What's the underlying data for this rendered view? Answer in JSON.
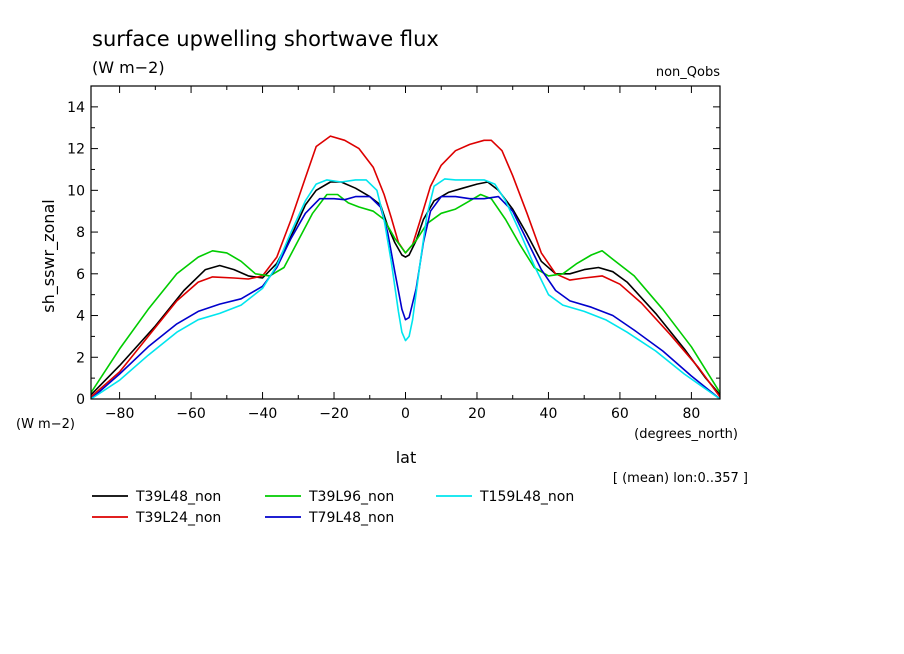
{
  "chart_data": {
    "type": "line",
    "title": "surface upwelling shortwave flux",
    "units": "(W m−2)",
    "experiment": "non_Qobs",
    "ylabel": "sh_sswr_zonal",
    "yunits": "(W m−2)",
    "xlabel": "lat",
    "xunits": "(degrees_north)",
    "note": "[ (mean) lon:0..357 ]",
    "xlim": [
      -88,
      88
    ],
    "ylim": [
      0,
      15
    ],
    "xticks": [
      -80,
      -60,
      -40,
      -20,
      0,
      20,
      40,
      60,
      80
    ],
    "yticks": [
      0,
      2,
      4,
      6,
      8,
      10,
      12,
      14
    ],
    "xtick_labels": [
      "−80",
      "−60",
      "−40",
      "−20",
      "0",
      "20",
      "40",
      "60",
      "80"
    ],
    "ytick_labels": [
      "0",
      "2",
      "4",
      "6",
      "8",
      "10",
      "12",
      "14"
    ],
    "legend_position": "below",
    "series": [
      {
        "name": "T39L48_non",
        "color": "#000000",
        "points": [
          [
            -88,
            0.2
          ],
          [
            -80,
            1.6
          ],
          [
            -70,
            3.5
          ],
          [
            -62,
            5.2
          ],
          [
            -56,
            6.2
          ],
          [
            -52,
            6.4
          ],
          [
            -48,
            6.2
          ],
          [
            -44,
            5.9
          ],
          [
            -40,
            5.8
          ],
          [
            -36,
            6.5
          ],
          [
            -32,
            7.8
          ],
          [
            -28,
            9.3
          ],
          [
            -25,
            10.0
          ],
          [
            -21,
            10.4
          ],
          [
            -18,
            10.4
          ],
          [
            -14,
            10.1
          ],
          [
            -10,
            9.7
          ],
          [
            -7,
            9.3
          ],
          [
            -5,
            8.3
          ],
          [
            -3,
            7.5
          ],
          [
            -1,
            6.9
          ],
          [
            0,
            6.8
          ],
          [
            1,
            6.9
          ],
          [
            3,
            7.6
          ],
          [
            5,
            8.6
          ],
          [
            8,
            9.5
          ],
          [
            12,
            9.9
          ],
          [
            16,
            10.1
          ],
          [
            20,
            10.3
          ],
          [
            23,
            10.4
          ],
          [
            26,
            10.0
          ],
          [
            30,
            9.1
          ],
          [
            34,
            7.9
          ],
          [
            38,
            6.6
          ],
          [
            42,
            6.0
          ],
          [
            46,
            6.0
          ],
          [
            50,
            6.2
          ],
          [
            54,
            6.3
          ],
          [
            58,
            6.1
          ],
          [
            62,
            5.6
          ],
          [
            70,
            4.1
          ],
          [
            78,
            2.4
          ],
          [
            84,
            1.0
          ],
          [
            88,
            0.2
          ]
        ]
      },
      {
        "name": "T39L24_non",
        "color": "#dd0000",
        "points": [
          [
            -88,
            0.1
          ],
          [
            -80,
            1.3
          ],
          [
            -72,
            3.0
          ],
          [
            -64,
            4.7
          ],
          [
            -58,
            5.6
          ],
          [
            -54,
            5.85
          ],
          [
            -48,
            5.8
          ],
          [
            -44,
            5.75
          ],
          [
            -40,
            5.9
          ],
          [
            -36,
            6.8
          ],
          [
            -32,
            8.6
          ],
          [
            -28,
            10.6
          ],
          [
            -25,
            12.1
          ],
          [
            -21,
            12.6
          ],
          [
            -17,
            12.4
          ],
          [
            -13,
            12.0
          ],
          [
            -9,
            11.1
          ],
          [
            -6,
            9.8
          ],
          [
            -4,
            8.7
          ],
          [
            -2,
            7.5
          ],
          [
            0,
            7.0
          ],
          [
            2,
            7.4
          ],
          [
            4,
            8.5
          ],
          [
            7,
            10.2
          ],
          [
            10,
            11.2
          ],
          [
            14,
            11.9
          ],
          [
            18,
            12.2
          ],
          [
            22,
            12.4
          ],
          [
            24,
            12.4
          ],
          [
            27,
            11.9
          ],
          [
            30,
            10.7
          ],
          [
            34,
            8.9
          ],
          [
            38,
            7.0
          ],
          [
            42,
            6.0
          ],
          [
            46,
            5.7
          ],
          [
            50,
            5.8
          ],
          [
            55,
            5.9
          ],
          [
            60,
            5.5
          ],
          [
            66,
            4.6
          ],
          [
            74,
            3.1
          ],
          [
            82,
            1.5
          ],
          [
            88,
            0.1
          ]
        ]
      },
      {
        "name": "T39L96_non",
        "color": "#00cc00",
        "points": [
          [
            -88,
            0.3
          ],
          [
            -80,
            2.4
          ],
          [
            -72,
            4.3
          ],
          [
            -64,
            6.0
          ],
          [
            -58,
            6.8
          ],
          [
            -54,
            7.1
          ],
          [
            -50,
            7.0
          ],
          [
            -46,
            6.6
          ],
          [
            -42,
            6.0
          ],
          [
            -38,
            5.9
          ],
          [
            -34,
            6.3
          ],
          [
            -30,
            7.6
          ],
          [
            -26,
            8.9
          ],
          [
            -22,
            9.8
          ],
          [
            -19,
            9.8
          ],
          [
            -16,
            9.4
          ],
          [
            -13,
            9.2
          ],
          [
            -9,
            9.0
          ],
          [
            -6,
            8.6
          ],
          [
            -3,
            7.7
          ],
          [
            0,
            7.0
          ],
          [
            3,
            7.6
          ],
          [
            6,
            8.4
          ],
          [
            10,
            8.9
          ],
          [
            14,
            9.1
          ],
          [
            18,
            9.5
          ],
          [
            21,
            9.8
          ],
          [
            24,
            9.6
          ],
          [
            28,
            8.6
          ],
          [
            32,
            7.4
          ],
          [
            36,
            6.3
          ],
          [
            40,
            5.9
          ],
          [
            44,
            6.0
          ],
          [
            48,
            6.5
          ],
          [
            52,
            6.9
          ],
          [
            55,
            7.1
          ],
          [
            58,
            6.7
          ],
          [
            64,
            5.9
          ],
          [
            72,
            4.3
          ],
          [
            80,
            2.5
          ],
          [
            88,
            0.3
          ]
        ]
      },
      {
        "name": "T79L48_non",
        "color": "#0000cc",
        "points": [
          [
            -88,
            0.0
          ],
          [
            -80,
            1.2
          ],
          [
            -72,
            2.5
          ],
          [
            -64,
            3.6
          ],
          [
            -58,
            4.2
          ],
          [
            -52,
            4.55
          ],
          [
            -46,
            4.8
          ],
          [
            -40,
            5.4
          ],
          [
            -36,
            6.3
          ],
          [
            -32,
            7.7
          ],
          [
            -28,
            8.9
          ],
          [
            -24,
            9.6
          ],
          [
            -20,
            9.6
          ],
          [
            -17,
            9.55
          ],
          [
            -14,
            9.7
          ],
          [
            -10,
            9.7
          ],
          [
            -7,
            9.2
          ],
          [
            -5,
            8.0
          ],
          [
            -3,
            6.1
          ],
          [
            -1,
            4.3
          ],
          [
            0,
            3.8
          ],
          [
            1,
            3.9
          ],
          [
            3,
            5.3
          ],
          [
            5,
            7.5
          ],
          [
            7,
            9.0
          ],
          [
            10,
            9.7
          ],
          [
            14,
            9.7
          ],
          [
            18,
            9.6
          ],
          [
            22,
            9.6
          ],
          [
            26,
            9.7
          ],
          [
            30,
            9.0
          ],
          [
            34,
            7.6
          ],
          [
            38,
            6.2
          ],
          [
            42,
            5.2
          ],
          [
            46,
            4.7
          ],
          [
            52,
            4.4
          ],
          [
            58,
            4.0
          ],
          [
            64,
            3.3
          ],
          [
            72,
            2.3
          ],
          [
            80,
            1.1
          ],
          [
            88,
            0.0
          ]
        ]
      },
      {
        "name": "T159L48_non",
        "color": "#00e5ee",
        "points": [
          [
            -88,
            0.0
          ],
          [
            -80,
            0.9
          ],
          [
            -72,
            2.1
          ],
          [
            -64,
            3.2
          ],
          [
            -58,
            3.8
          ],
          [
            -52,
            4.1
          ],
          [
            -46,
            4.5
          ],
          [
            -40,
            5.3
          ],
          [
            -36,
            6.4
          ],
          [
            -32,
            8.0
          ],
          [
            -28,
            9.5
          ],
          [
            -25,
            10.3
          ],
          [
            -22,
            10.5
          ],
          [
            -18,
            10.4
          ],
          [
            -14,
            10.5
          ],
          [
            -11,
            10.5
          ],
          [
            -8,
            10.0
          ],
          [
            -6,
            8.6
          ],
          [
            -4,
            6.6
          ],
          [
            -2,
            4.2
          ],
          [
            -1,
            3.2
          ],
          [
            0,
            2.8
          ],
          [
            1,
            3.0
          ],
          [
            2,
            3.8
          ],
          [
            4,
            6.4
          ],
          [
            6,
            8.8
          ],
          [
            8,
            10.2
          ],
          [
            11,
            10.55
          ],
          [
            14,
            10.5
          ],
          [
            18,
            10.5
          ],
          [
            22,
            10.5
          ],
          [
            25,
            10.3
          ],
          [
            28,
            9.5
          ],
          [
            32,
            8.0
          ],
          [
            36,
            6.4
          ],
          [
            40,
            5.0
          ],
          [
            44,
            4.5
          ],
          [
            50,
            4.2
          ],
          [
            56,
            3.8
          ],
          [
            62,
            3.2
          ],
          [
            70,
            2.3
          ],
          [
            78,
            1.2
          ],
          [
            88,
            0.0
          ]
        ]
      }
    ]
  }
}
